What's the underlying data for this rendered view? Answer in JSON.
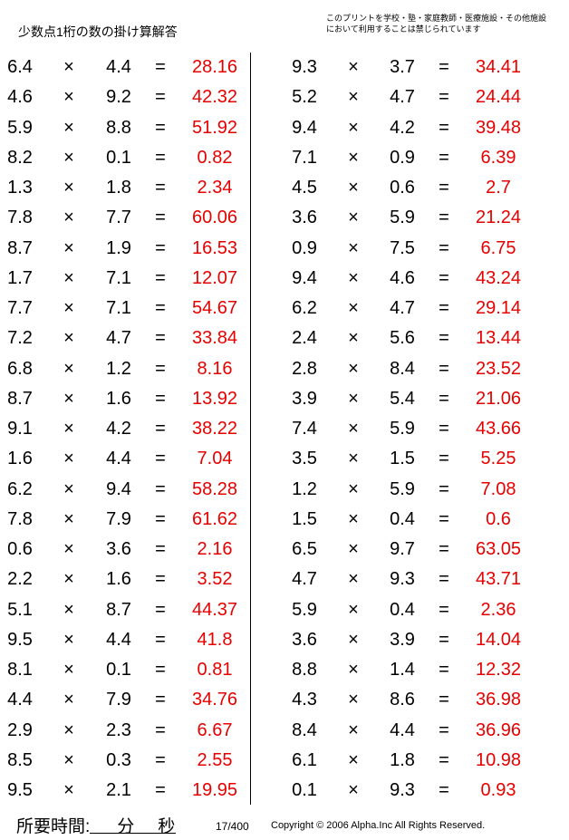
{
  "title": "少数点1桁の数の掛け算解答",
  "notice": "このプリントを学校・塾・家庭教師・医療施設・その他施設において利用することは禁じられています",
  "operator": "×",
  "equals": "=",
  "left": [
    [
      "6.4",
      "4.4",
      "28.16"
    ],
    [
      "4.6",
      "9.2",
      "42.32"
    ],
    [
      "5.9",
      "8.8",
      "51.92"
    ],
    [
      "8.2",
      "0.1",
      "0.82"
    ],
    [
      "1.3",
      "1.8",
      "2.34"
    ],
    [
      "7.8",
      "7.7",
      "60.06"
    ],
    [
      "8.7",
      "1.9",
      "16.53"
    ],
    [
      "1.7",
      "7.1",
      "12.07"
    ],
    [
      "7.7",
      "7.1",
      "54.67"
    ],
    [
      "7.2",
      "4.7",
      "33.84"
    ],
    [
      "6.8",
      "1.2",
      "8.16"
    ],
    [
      "8.7",
      "1.6",
      "13.92"
    ],
    [
      "9.1",
      "4.2",
      "38.22"
    ],
    [
      "1.6",
      "4.4",
      "7.04"
    ],
    [
      "6.2",
      "9.4",
      "58.28"
    ],
    [
      "7.8",
      "7.9",
      "61.62"
    ],
    [
      "0.6",
      "3.6",
      "2.16"
    ],
    [
      "2.2",
      "1.6",
      "3.52"
    ],
    [
      "5.1",
      "8.7",
      "44.37"
    ],
    [
      "9.5",
      "4.4",
      "41.8"
    ],
    [
      "8.1",
      "0.1",
      "0.81"
    ],
    [
      "4.4",
      "7.9",
      "34.76"
    ],
    [
      "2.9",
      "2.3",
      "6.67"
    ],
    [
      "8.5",
      "0.3",
      "2.55"
    ],
    [
      "9.5",
      "2.1",
      "19.95"
    ]
  ],
  "right": [
    [
      "9.3",
      "3.7",
      "34.41"
    ],
    [
      "5.2",
      "4.7",
      "24.44"
    ],
    [
      "9.4",
      "4.2",
      "39.48"
    ],
    [
      "7.1",
      "0.9",
      "6.39"
    ],
    [
      "4.5",
      "0.6",
      "2.7"
    ],
    [
      "3.6",
      "5.9",
      "21.24"
    ],
    [
      "0.9",
      "7.5",
      "6.75"
    ],
    [
      "9.4",
      "4.6",
      "43.24"
    ],
    [
      "6.2",
      "4.7",
      "29.14"
    ],
    [
      "2.4",
      "5.6",
      "13.44"
    ],
    [
      "2.8",
      "8.4",
      "23.52"
    ],
    [
      "3.9",
      "5.4",
      "21.06"
    ],
    [
      "7.4",
      "5.9",
      "43.66"
    ],
    [
      "3.5",
      "1.5",
      "5.25"
    ],
    [
      "1.2",
      "5.9",
      "7.08"
    ],
    [
      "1.5",
      "0.4",
      "0.6"
    ],
    [
      "6.5",
      "9.7",
      "63.05"
    ],
    [
      "4.7",
      "9.3",
      "43.71"
    ],
    [
      "5.9",
      "0.4",
      "2.36"
    ],
    [
      "3.6",
      "3.9",
      "14.04"
    ],
    [
      "8.8",
      "1.4",
      "12.32"
    ],
    [
      "4.3",
      "8.6",
      "36.98"
    ],
    [
      "8.4",
      "4.4",
      "36.96"
    ],
    [
      "6.1",
      "1.8",
      "10.98"
    ],
    [
      "0.1",
      "9.3",
      "0.93"
    ]
  ],
  "answer_color": "#e60000",
  "footer": {
    "time_label": "所要時間:",
    "minutes": "分",
    "seconds": "秒",
    "page": "17/400",
    "copyright": "Copyright © 2006 Alpha.Inc All Rights Reserved."
  }
}
